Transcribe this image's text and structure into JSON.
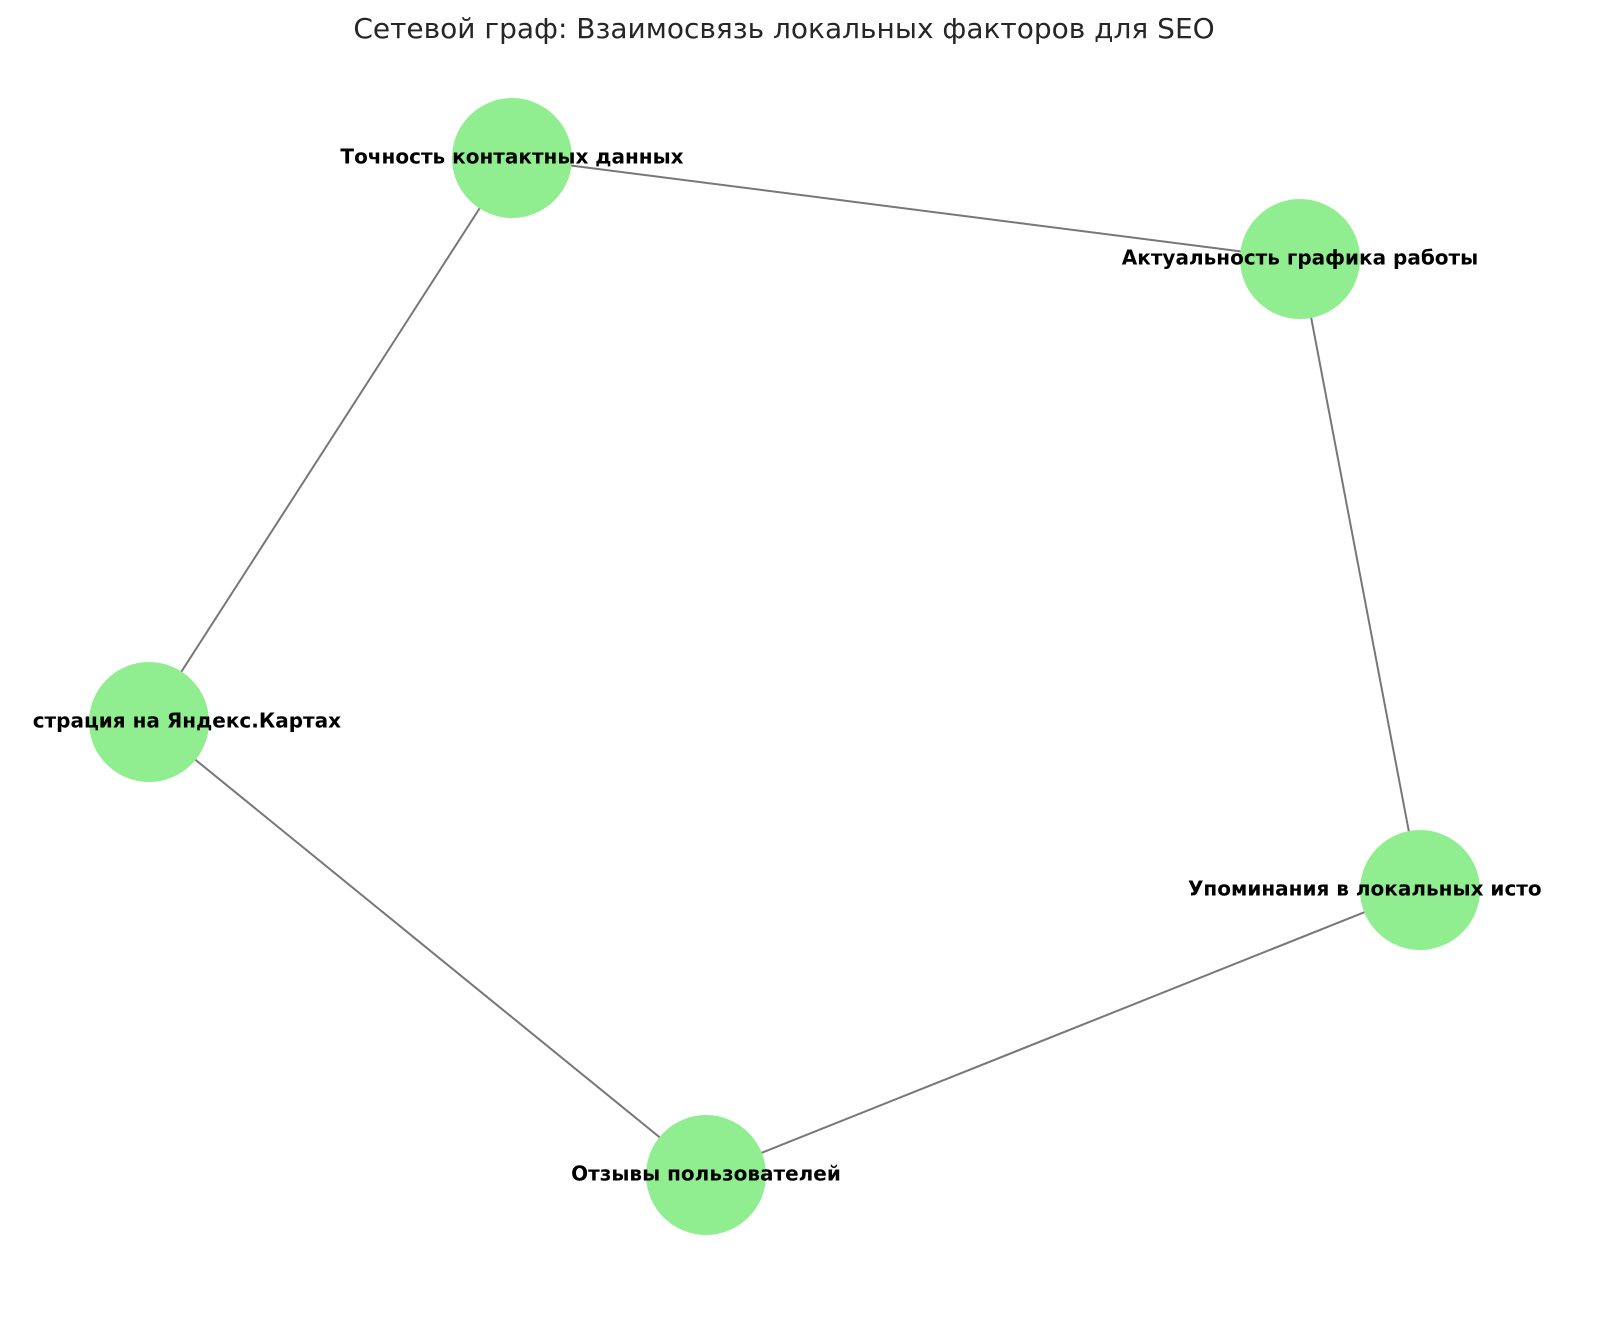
{
  "title": "Сетевой граф: Взаимосвязь локальных факторов для SEO",
  "nodes": [
    {
      "label": "Точность контактных данных"
    },
    {
      "label": "Актуальность графика работы"
    },
    {
      "label": "страция на Яндекс.Картах"
    },
    {
      "label": "Упоминания в локальных исто"
    },
    {
      "label": "Отзывы пользователей"
    }
  ]
}
